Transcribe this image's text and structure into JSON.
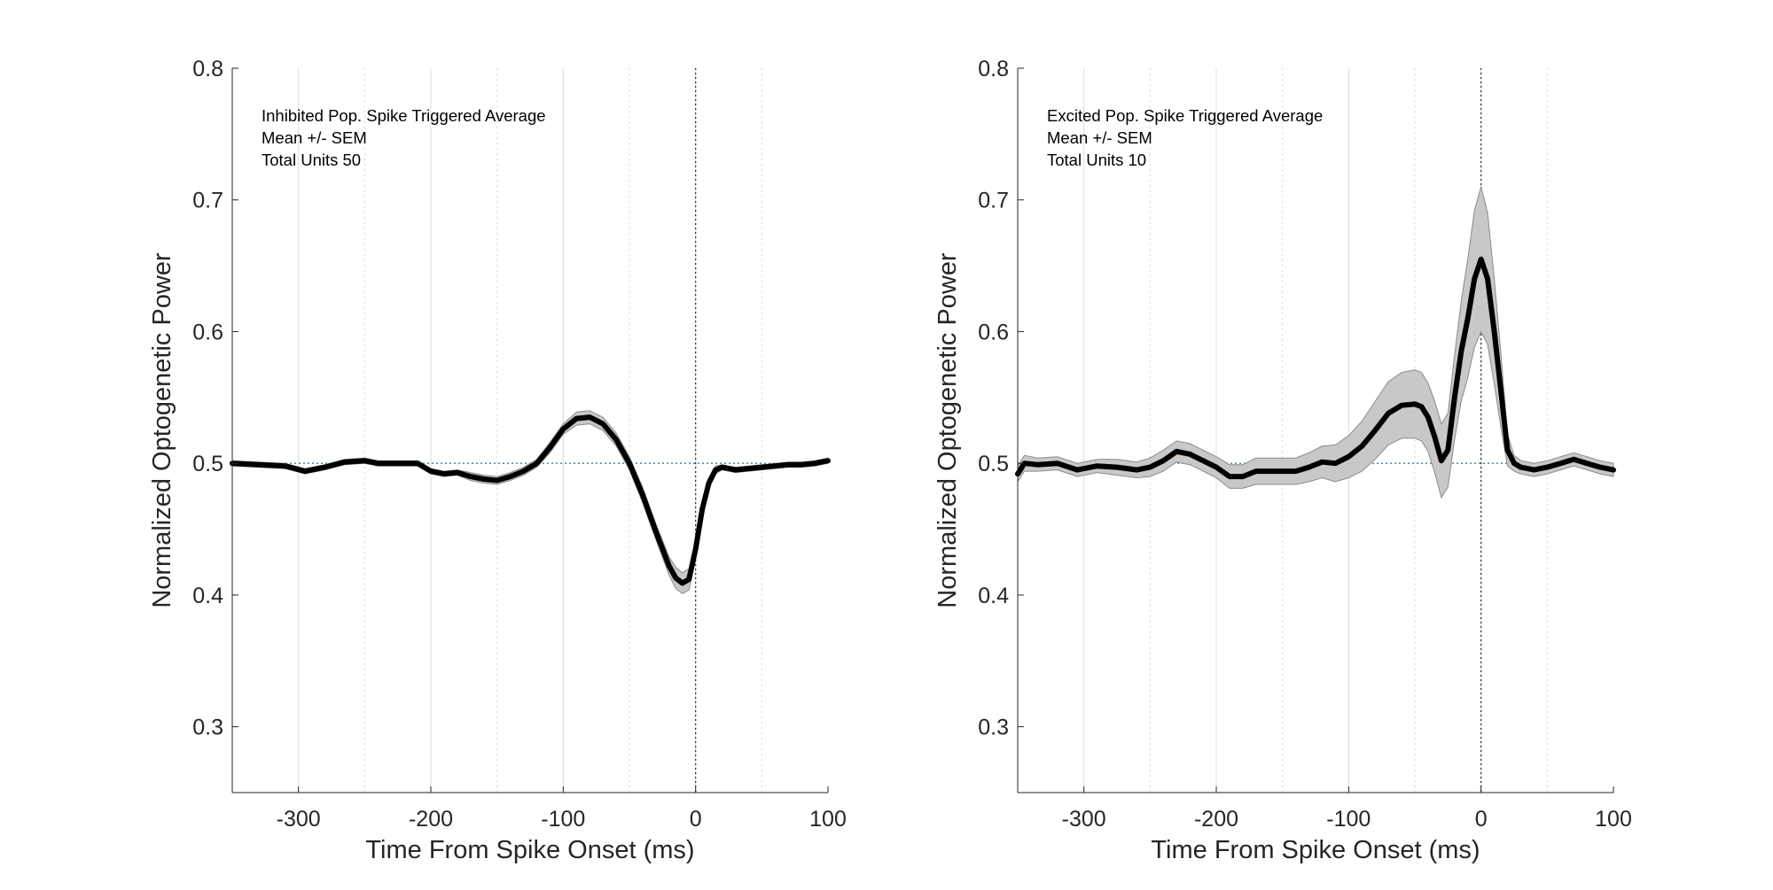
{
  "colors": {
    "mean_line": "#000000",
    "sem_band": "#c8c8c8",
    "sem_edge": "#8c8c8c",
    "baseline": "#2f7fc1",
    "axis": "#262626",
    "grid": "#dcdcdc"
  },
  "chart_data": [
    {
      "type": "line",
      "xlabel": "Time From Spike Onset (ms)",
      "ylabel": "Normalized Optogenetic Power",
      "xlim": [
        -350,
        100
      ],
      "ylim": [
        0.25,
        0.8
      ],
      "xticks": [
        -300,
        -200,
        -100,
        0,
        100
      ],
      "xtick_labels": [
        "-300",
        "-200",
        "-100",
        "0",
        "100"
      ],
      "yticks": [
        0.3,
        0.4,
        0.5,
        0.6,
        0.7,
        0.8
      ],
      "ytick_labels": [
        "0.3",
        "0.4",
        "0.5",
        "0.6",
        "0.7",
        "0.8"
      ],
      "baseline_y": 0.5,
      "onset_x": 0,
      "annotations": [
        "Inhibited Pop. Spike Triggered Average",
        "Mean +/- SEM",
        "Total Units 50"
      ],
      "grid": "vertical lines (solid at major ticks, dotted at half steps)",
      "series": [
        {
          "x": [
            -350,
            -330,
            -310,
            -295,
            -280,
            -265,
            -250,
            -240,
            -225,
            -210,
            -200,
            -190,
            -180,
            -170,
            -160,
            -150,
            -140,
            -130,
            -120,
            -110,
            -100,
            -90,
            -80,
            -70,
            -60,
            -50,
            -40,
            -30,
            -20,
            -15,
            -10,
            -5,
            0,
            5,
            10,
            15,
            20,
            30,
            40,
            50,
            60,
            70,
            80,
            90,
            100
          ],
          "mean": [
            0.5,
            0.499,
            0.498,
            0.494,
            0.497,
            0.501,
            0.502,
            0.5,
            0.5,
            0.5,
            0.494,
            0.492,
            0.493,
            0.49,
            0.488,
            0.487,
            0.49,
            0.494,
            0.5,
            0.512,
            0.526,
            0.534,
            0.535,
            0.53,
            0.518,
            0.5,
            0.476,
            0.448,
            0.422,
            0.413,
            0.409,
            0.412,
            0.435,
            0.465,
            0.485,
            0.495,
            0.497,
            0.495,
            0.496,
            0.497,
            0.498,
            0.499,
            0.499,
            0.5,
            0.502
          ],
          "sem": [
            0.002,
            0.002,
            0.002,
            0.002,
            0.002,
            0.002,
            0.002,
            0.002,
            0.002,
            0.002,
            0.002,
            0.002,
            0.002,
            0.003,
            0.003,
            0.003,
            0.003,
            0.003,
            0.003,
            0.004,
            0.004,
            0.005,
            0.005,
            0.005,
            0.005,
            0.005,
            0.006,
            0.006,
            0.007,
            0.008,
            0.008,
            0.008,
            0.007,
            0.005,
            0.004,
            0.003,
            0.002,
            0.002,
            0.002,
            0.002,
            0.002,
            0.002,
            0.002,
            0.002,
            0.002
          ]
        }
      ]
    },
    {
      "type": "line",
      "xlabel": "Time From Spike Onset (ms)",
      "ylabel": "Normalized Optogenetic Power",
      "xlim": [
        -350,
        100
      ],
      "ylim": [
        0.25,
        0.8
      ],
      "xticks": [
        -300,
        -200,
        -100,
        0,
        100
      ],
      "xtick_labels": [
        "-300",
        "-200",
        "-100",
        "0",
        "100"
      ],
      "yticks": [
        0.3,
        0.4,
        0.5,
        0.6,
        0.7,
        0.8
      ],
      "ytick_labels": [
        "0.3",
        "0.4",
        "0.5",
        "0.6",
        "0.7",
        "0.8"
      ],
      "baseline_y": 0.5,
      "onset_x": 0,
      "annotations": [
        "Excited Pop. Spike Triggered Average",
        "Mean +/- SEM",
        "Total Units 10"
      ],
      "grid": "vertical lines (solid at major ticks, dotted at half steps)",
      "series": [
        {
          "x": [
            -350,
            -345,
            -335,
            -320,
            -305,
            -290,
            -275,
            -260,
            -250,
            -240,
            -230,
            -220,
            -210,
            -200,
            -190,
            -180,
            -170,
            -160,
            -150,
            -140,
            -130,
            -120,
            -110,
            -100,
            -90,
            -80,
            -70,
            -60,
            -50,
            -45,
            -40,
            -35,
            -30,
            -25,
            -20,
            -15,
            -10,
            -5,
            0,
            5,
            10,
            15,
            20,
            25,
            30,
            40,
            50,
            60,
            70,
            80,
            90,
            100
          ],
          "mean": [
            0.492,
            0.5,
            0.499,
            0.5,
            0.495,
            0.498,
            0.497,
            0.495,
            0.497,
            0.502,
            0.509,
            0.507,
            0.502,
            0.497,
            0.49,
            0.49,
            0.494,
            0.494,
            0.494,
            0.494,
            0.497,
            0.501,
            0.5,
            0.505,
            0.513,
            0.525,
            0.538,
            0.544,
            0.545,
            0.543,
            0.535,
            0.52,
            0.502,
            0.51,
            0.55,
            0.585,
            0.61,
            0.64,
            0.655,
            0.64,
            0.6,
            0.555,
            0.51,
            0.5,
            0.497,
            0.495,
            0.497,
            0.5,
            0.503,
            0.5,
            0.497,
            0.495
          ],
          "sem": [
            0.006,
            0.006,
            0.005,
            0.005,
            0.005,
            0.005,
            0.006,
            0.006,
            0.007,
            0.008,
            0.008,
            0.008,
            0.008,
            0.008,
            0.009,
            0.009,
            0.01,
            0.01,
            0.01,
            0.01,
            0.011,
            0.012,
            0.014,
            0.016,
            0.019,
            0.022,
            0.024,
            0.025,
            0.026,
            0.026,
            0.026,
            0.027,
            0.028,
            0.028,
            0.032,
            0.038,
            0.045,
            0.052,
            0.055,
            0.05,
            0.04,
            0.028,
            0.012,
            0.006,
            0.005,
            0.005,
            0.005,
            0.005,
            0.005,
            0.005,
            0.005,
            0.005
          ]
        }
      ]
    }
  ]
}
